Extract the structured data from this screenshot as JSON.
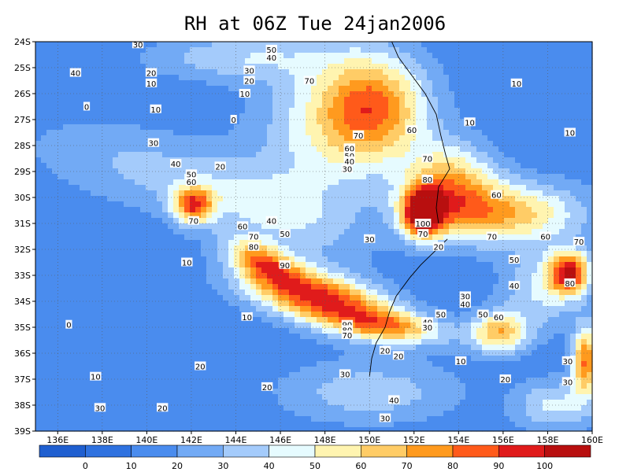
{
  "chart_data": {
    "type": "heatmap",
    "title": "RH at 06Z Tue 24jan2006",
    "xlabel": "",
    "ylabel": "",
    "xlim": [
      135,
      160
    ],
    "ylim": [
      -39,
      -24
    ],
    "x_ticks": [
      "136E",
      "138E",
      "140E",
      "142E",
      "144E",
      "146E",
      "148E",
      "150E",
      "152E",
      "154E",
      "156E",
      "158E",
      "160E"
    ],
    "y_ticks": [
      "24S",
      "25S",
      "26S",
      "27S",
      "28S",
      "29S",
      "30S",
      "31S",
      "32S",
      "33S",
      "34S",
      "35S",
      "36S",
      "37S",
      "38S",
      "39S"
    ],
    "grid": true,
    "colorbar": {
      "bounds": [
        0,
        10,
        20,
        30,
        40,
        50,
        60,
        70,
        80,
        90,
        100
      ],
      "colors": [
        "#1f5fd0",
        "#2f72e0",
        "#4a8cee",
        "#72aaf5",
        "#a4cbfb",
        "#e6fbff",
        "#fff4b0",
        "#ffcc66",
        "#ff9a1e",
        "#ff5a1a",
        "#e01b1b",
        "#b80f0f"
      ],
      "labels": [
        "0",
        "10",
        "20",
        "30",
        "40",
        "50",
        "60",
        "70",
        "80",
        "90",
        "100"
      ]
    },
    "background_value": 12,
    "features": [
      {
        "lon": 147.8,
        "lat": -33.9,
        "rx": 3.4,
        "ry": 1.0,
        "rot": -12,
        "amp": 82
      },
      {
        "lon": 145.2,
        "lat": -32.5,
        "rx": 1.6,
        "ry": 0.7,
        "rot": -20,
        "amp": 55
      },
      {
        "lon": 151.0,
        "lat": -35.0,
        "rx": 2.5,
        "ry": 0.6,
        "rot": -5,
        "amp": 45
      },
      {
        "lon": 152.4,
        "lat": -30.6,
        "rx": 0.9,
        "ry": 0.9,
        "rot": 0,
        "amp": 92
      },
      {
        "lon": 150.2,
        "lat": -26.5,
        "rx": 2.4,
        "ry": 2.0,
        "rot": 0,
        "amp": 60
      },
      {
        "lon": 153.6,
        "lat": -29.5,
        "rx": 2.0,
        "ry": 1.6,
        "rot": 0,
        "amp": 52
      },
      {
        "lon": 156.0,
        "lat": -30.6,
        "rx": 3.5,
        "ry": 1.2,
        "rot": 0,
        "amp": 55
      },
      {
        "lon": 159.0,
        "lat": -32.9,
        "rx": 0.9,
        "ry": 0.8,
        "rot": 0,
        "amp": 78
      },
      {
        "lon": 142.1,
        "lat": -30.3,
        "rx": 0.9,
        "ry": 0.7,
        "rot": 0,
        "amp": 65
      },
      {
        "lon": 155.8,
        "lat": -35.2,
        "rx": 1.3,
        "ry": 0.8,
        "rot": 0,
        "amp": 55
      },
      {
        "lon": 159.7,
        "lat": -36.3,
        "rx": 0.6,
        "ry": 1.3,
        "rot": 0,
        "amp": 68
      },
      {
        "lon": 148.0,
        "lat": -27.5,
        "rx": 3.2,
        "ry": 3.0,
        "rot": 0,
        "amp": 30
      },
      {
        "lon": 145.5,
        "lat": -30.5,
        "rx": 4.0,
        "ry": 1.5,
        "rot": -15,
        "amp": 25
      },
      {
        "lon": 139.5,
        "lat": -28.8,
        "rx": 5.0,
        "ry": 1.6,
        "rot": -10,
        "amp": 18
      },
      {
        "lon": 150.0,
        "lat": -37.5,
        "rx": 4.0,
        "ry": 1.2,
        "rot": 0,
        "amp": 25
      },
      {
        "lon": 144.0,
        "lat": -24.6,
        "rx": 4.0,
        "ry": 0.9,
        "rot": 0,
        "amp": 25
      },
      {
        "lon": 158.3,
        "lat": -38.0,
        "rx": 1.8,
        "ry": 1.0,
        "rot": 0,
        "amp": 30
      },
      {
        "lon": 157.8,
        "lat": -33.5,
        "rx": 1.8,
        "ry": 1.5,
        "rot": 0,
        "amp": 30
      }
    ],
    "contour_labels": [
      {
        "text": "30",
        "lon": 139.6,
        "lat": -24.1
      },
      {
        "text": "40",
        "lon": 136.8,
        "lat": -25.2
      },
      {
        "text": "20",
        "lon": 140.2,
        "lat": -25.2
      },
      {
        "text": "10",
        "lon": 140.2,
        "lat": -25.6
      },
      {
        "text": "0",
        "lon": 137.3,
        "lat": -26.5
      },
      {
        "text": "10",
        "lon": 140.4,
        "lat": -26.6
      },
      {
        "text": "30",
        "lon": 140.3,
        "lat": -27.9
      },
      {
        "text": "40",
        "lon": 141.3,
        "lat": -28.7
      },
      {
        "text": "50",
        "lon": 142.0,
        "lat": -29.1
      },
      {
        "text": "60",
        "lon": 142.0,
        "lat": -29.4
      },
      {
        "text": "70",
        "lon": 142.1,
        "lat": -30.9
      },
      {
        "text": "20",
        "lon": 143.3,
        "lat": -28.8
      },
      {
        "text": "0",
        "lon": 143.9,
        "lat": -27.0
      },
      {
        "text": "10",
        "lon": 144.4,
        "lat": -26.0
      },
      {
        "text": "20",
        "lon": 144.6,
        "lat": -25.5
      },
      {
        "text": "30",
        "lon": 144.6,
        "lat": -25.1
      },
      {
        "text": "40",
        "lon": 145.6,
        "lat": -24.6
      },
      {
        "text": "50",
        "lon": 145.6,
        "lat": -24.3
      },
      {
        "text": "70",
        "lon": 147.3,
        "lat": -25.5
      },
      {
        "text": "70",
        "lon": 149.5,
        "lat": -27.6
      },
      {
        "text": "60",
        "lon": 151.9,
        "lat": -27.4
      },
      {
        "text": "60",
        "lon": 149.1,
        "lat": -28.1
      },
      {
        "text": "50",
        "lon": 149.1,
        "lat": -28.4
      },
      {
        "text": "40",
        "lon": 149.1,
        "lat": -28.6
      },
      {
        "text": "30",
        "lon": 149.0,
        "lat": -28.9
      },
      {
        "text": "70",
        "lon": 152.6,
        "lat": -28.5
      },
      {
        "text": "80",
        "lon": 152.6,
        "lat": -29.3
      },
      {
        "text": "100",
        "lon": 152.4,
        "lat": -31.0
      },
      {
        "text": "70",
        "lon": 152.4,
        "lat": -31.4
      },
      {
        "text": "20",
        "lon": 153.1,
        "lat": -31.9
      },
      {
        "text": "30",
        "lon": 150.0,
        "lat": -31.6
      },
      {
        "text": "60",
        "lon": 155.7,
        "lat": -29.9
      },
      {
        "text": "70",
        "lon": 155.5,
        "lat": -31.5
      },
      {
        "text": "60",
        "lon": 157.9,
        "lat": -31.5
      },
      {
        "text": "70",
        "lon": 159.4,
        "lat": -31.7
      },
      {
        "text": "50",
        "lon": 156.5,
        "lat": -32.4
      },
      {
        "text": "40",
        "lon": 156.5,
        "lat": -33.4
      },
      {
        "text": "80",
        "lon": 159.0,
        "lat": -33.3
      },
      {
        "text": "10",
        "lon": 156.6,
        "lat": -25.6
      },
      {
        "text": "10",
        "lon": 154.5,
        "lat": -27.1
      },
      {
        "text": "10",
        "lon": 159.0,
        "lat": -27.5
      },
      {
        "text": "40",
        "lon": 145.6,
        "lat": -30.9
      },
      {
        "text": "60",
        "lon": 144.3,
        "lat": -31.1
      },
      {
        "text": "50",
        "lon": 146.2,
        "lat": -31.4
      },
      {
        "text": "70",
        "lon": 144.8,
        "lat": -31.5
      },
      {
        "text": "80",
        "lon": 144.8,
        "lat": -31.9
      },
      {
        "text": "90",
        "lon": 146.2,
        "lat": -32.6
      },
      {
        "text": "10",
        "lon": 141.8,
        "lat": -32.5
      },
      {
        "text": "10",
        "lon": 144.5,
        "lat": -34.6
      },
      {
        "text": "0",
        "lon": 136.5,
        "lat": -34.9
      },
      {
        "text": "90",
        "lon": 149.0,
        "lat": -34.9
      },
      {
        "text": "80",
        "lon": 149.0,
        "lat": -35.1
      },
      {
        "text": "70",
        "lon": 149.0,
        "lat": -35.3
      },
      {
        "text": "50",
        "lon": 153.2,
        "lat": -34.5
      },
      {
        "text": "40",
        "lon": 152.6,
        "lat": -34.8
      },
      {
        "text": "30",
        "lon": 152.6,
        "lat": -35.0
      },
      {
        "text": "30",
        "lon": 154.3,
        "lat": -33.8
      },
      {
        "text": "40",
        "lon": 154.3,
        "lat": -34.1
      },
      {
        "text": "50",
        "lon": 155.1,
        "lat": -34.5
      },
      {
        "text": "60",
        "lon": 155.8,
        "lat": -34.6
      },
      {
        "text": "20",
        "lon": 150.7,
        "lat": -35.9
      },
      {
        "text": "20",
        "lon": 151.3,
        "lat": -36.1
      },
      {
        "text": "10",
        "lon": 154.1,
        "lat": -36.3
      },
      {
        "text": "30",
        "lon": 158.9,
        "lat": -36.3
      },
      {
        "text": "20",
        "lon": 156.1,
        "lat": -37.0
      },
      {
        "text": "30",
        "lon": 158.9,
        "lat": -37.1
      },
      {
        "text": "20",
        "lon": 142.4,
        "lat": -36.5
      },
      {
        "text": "10",
        "lon": 137.7,
        "lat": -36.9
      },
      {
        "text": "30",
        "lon": 148.9,
        "lat": -36.8
      },
      {
        "text": "20",
        "lon": 145.4,
        "lat": -37.3
      },
      {
        "text": "40",
        "lon": 151.1,
        "lat": -37.8
      },
      {
        "text": "30",
        "lon": 137.9,
        "lat": -38.1
      },
      {
        "text": "20",
        "lon": 140.7,
        "lat": -38.1
      },
      {
        "text": "30",
        "lon": 150.7,
        "lat": -38.5
      }
    ],
    "coastline": [
      [
        153.5,
        -31.6
      ],
      [
        152.9,
        -32.1
      ],
      [
        152.3,
        -32.6
      ],
      [
        151.8,
        -33.1
      ],
      [
        151.2,
        -33.8
      ],
      [
        150.9,
        -34.4
      ],
      [
        150.7,
        -35.0
      ],
      [
        150.3,
        -35.6
      ],
      [
        150.1,
        -36.2
      ],
      [
        150.0,
        -36.9
      ]
    ],
    "coastline2": [
      [
        151.0,
        -24.0
      ],
      [
        151.3,
        -24.6
      ],
      [
        151.9,
        -25.3
      ],
      [
        152.5,
        -26.0
      ],
      [
        153.0,
        -26.8
      ],
      [
        153.2,
        -27.6
      ],
      [
        153.4,
        -28.3
      ],
      [
        153.6,
        -28.9
      ],
      [
        153.1,
        -29.6
      ],
      [
        153.0,
        -30.4
      ],
      [
        153.1,
        -31.0
      ]
    ]
  }
}
